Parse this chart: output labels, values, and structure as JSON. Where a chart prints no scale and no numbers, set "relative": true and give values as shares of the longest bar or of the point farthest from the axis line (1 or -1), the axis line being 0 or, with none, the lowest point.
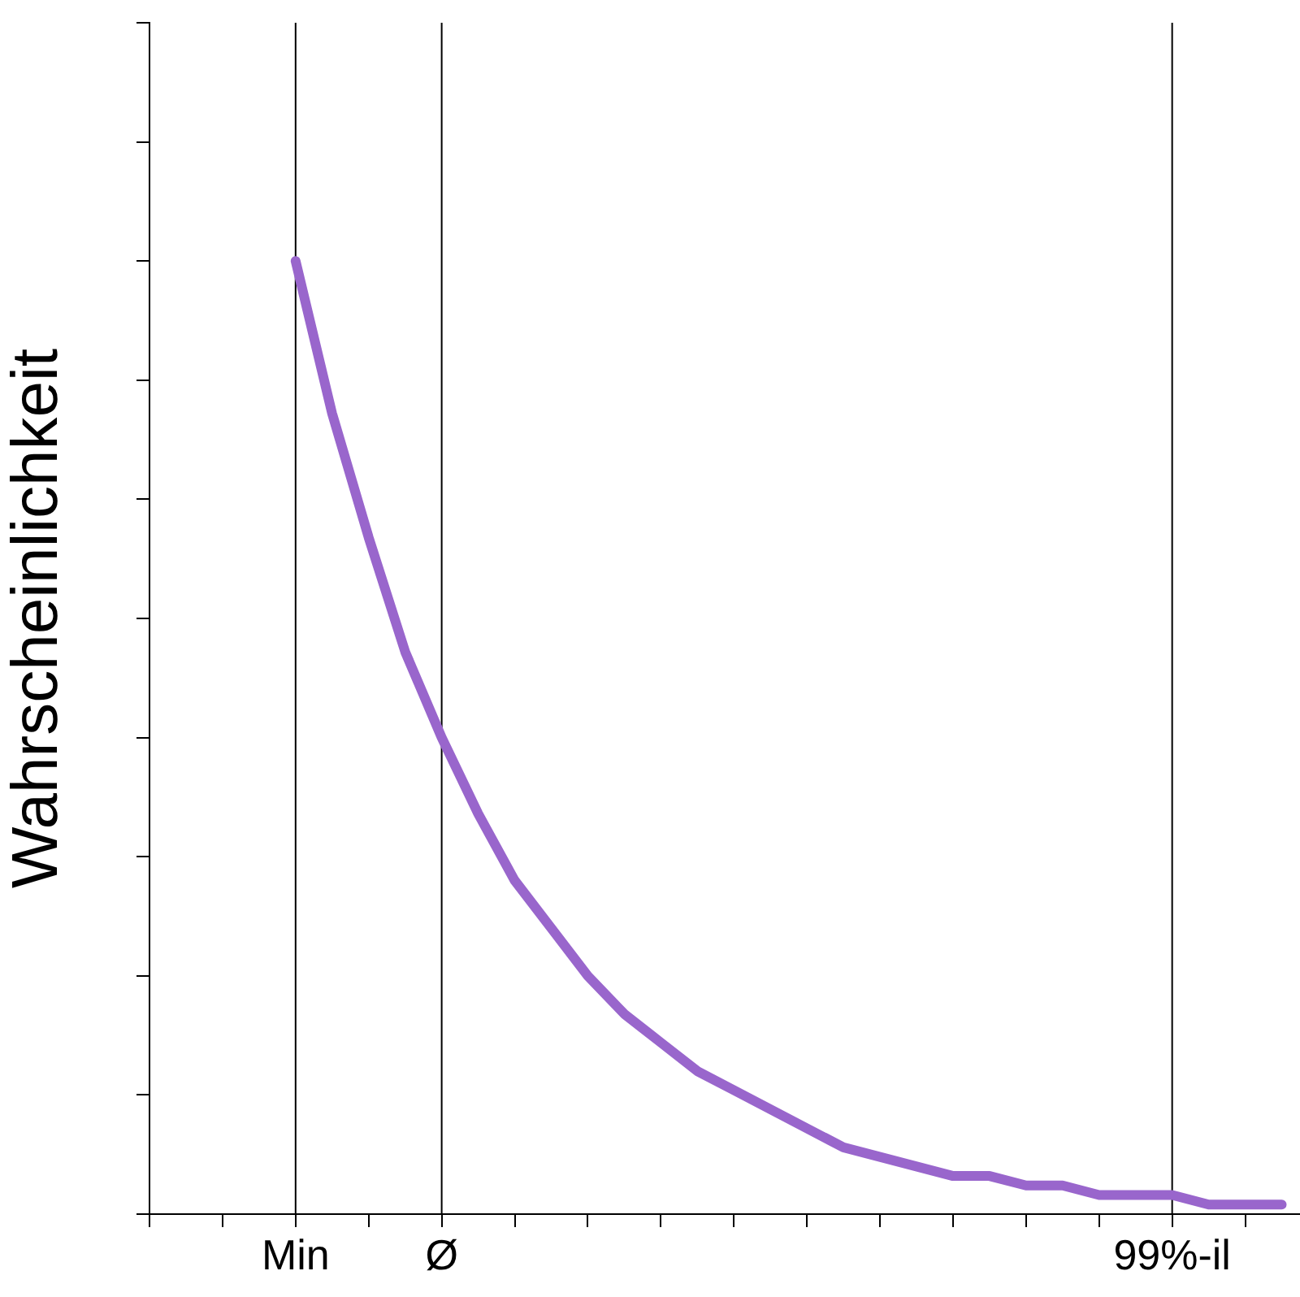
{
  "chart_data": {
    "type": "line",
    "relative": true,
    "ylabel": "Wahrscheinlichkeit",
    "categories": [
      null,
      null,
      null,
      null,
      "Min",
      null,
      null,
      null,
      "Ø",
      null,
      null,
      null,
      null,
      null,
      null,
      null,
      null,
      null,
      null,
      null,
      null,
      null,
      null,
      null,
      null,
      null,
      null,
      null,
      "99%-il",
      null,
      null,
      null
    ],
    "series": [
      {
        "color": "#9966cc",
        "values": [
          null,
          null,
          null,
          null,
          1,
          0.84,
          0.71,
          0.59,
          0.5,
          0.42,
          0.35,
          0.3,
          0.25,
          0.21,
          0.18,
          0.15,
          0.13,
          0.11,
          0.09,
          0.07,
          0.06,
          0.05,
          0.04,
          0.04,
          0.03,
          0.03,
          0.02,
          0.02,
          0.02,
          0.01,
          0.01,
          0.01
        ]
      }
    ],
    "ref_lines": [
      {
        "axis": "x",
        "value": "Min",
        "color": "#000000"
      },
      {
        "axis": "x",
        "value": "Ø",
        "color": "#000000"
      },
      {
        "axis": "x",
        "value": "99%-il",
        "color": "#000000"
      }
    ],
    "grid": false,
    "legend": false,
    "marker": "none",
    "line_style": "solid"
  }
}
